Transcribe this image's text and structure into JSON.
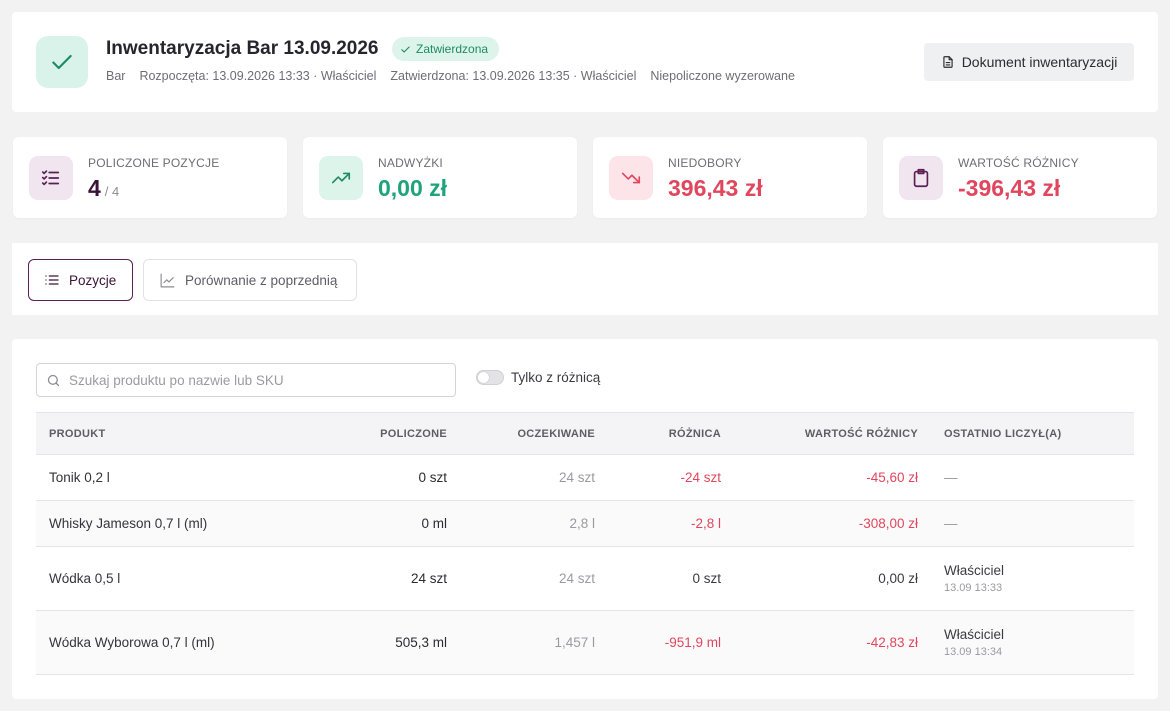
{
  "header": {
    "title": "Inwentaryzacja Bar 13.09.2026",
    "status": "Zatwierdzona",
    "meta": {
      "location": "Bar",
      "started": "Rozpoczęta: 13.09.2026 13:33 · Właściciel",
      "approved": "Zatwierdzona: 13.09.2026 13:35 · Właściciel",
      "note": "Niepoliczone wyzerowane"
    },
    "doc_button": "Dokument inwentaryzacji"
  },
  "stats": [
    {
      "label": "POLICZONE POZYCJE",
      "value": "4",
      "suffix": "/ 4",
      "icon": "checklist-icon"
    },
    {
      "label": "NADWYŻKI",
      "value": "0,00 zł",
      "icon": "trending-up-icon"
    },
    {
      "label": "NIEDOBORY",
      "value": "396,43 zł",
      "icon": "trending-down-icon"
    },
    {
      "label": "WARTOŚĆ RÓŻNICY",
      "value": "-396,43 zł",
      "icon": "clipboard-icon"
    }
  ],
  "tabs": [
    {
      "label": "Pozycje",
      "active": true,
      "icon": "list-icon"
    },
    {
      "label": "Porównanie z poprzednią",
      "active": false,
      "icon": "chart-icon"
    }
  ],
  "filters": {
    "search_placeholder": "Szukaj produktu po nazwie lub SKU",
    "search_value": "",
    "only_diff_label": "Tylko z różnicą",
    "only_diff_on": false
  },
  "table": {
    "columns": [
      "PRODUKT",
      "POLICZONE",
      "OCZEKIWANE",
      "RÓŻNICA",
      "WARTOŚĆ RÓŻNICY",
      "OSTATNIO LICZYŁ(A)"
    ],
    "rows": [
      {
        "product": "Tonik 0,2 l",
        "counted": "0 szt",
        "expected": "24 szt",
        "diff": "-24 szt",
        "value": "-45,60 zł",
        "who": "—",
        "when": ""
      },
      {
        "product": "Whisky Jameson 0,7 l (ml)",
        "counted": "0 ml",
        "expected": "2,8 l",
        "diff": "-2,8 l",
        "value": "-308,00 zł",
        "who": "—",
        "when": ""
      },
      {
        "product": "Wódka 0,5 l",
        "counted": "24 szt",
        "expected": "24 szt",
        "diff": "0 szt",
        "value": "0,00 zł",
        "who": "Właściciel",
        "when": "13.09 13:33"
      },
      {
        "product": "Wódka Wyborowa 0,7 l (ml)",
        "counted": "505,3 ml",
        "expected": "1,457 l",
        "diff": "-951,9 ml",
        "value": "-42,83 zł",
        "who": "Właściciel",
        "when": "13.09 13:34"
      }
    ]
  },
  "colors": {
    "accent": "#5a1f53",
    "positive": "#1fa37a",
    "negative": "#e0475e",
    "success_bg": "#dcf4ea"
  }
}
